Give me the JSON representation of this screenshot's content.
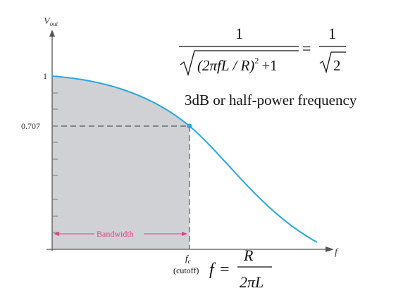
{
  "axes": {
    "y_label_main": "V",
    "y_label_sub": "out",
    "x_label": "f",
    "y_tick_1": "1",
    "y_tick_0707": "0.707"
  },
  "bandwidth_label": "Bandwidth",
  "cutoff": {
    "fc_main": "f",
    "fc_sub": "c",
    "cutoff_word": "(cutoff)"
  },
  "cutoff_formula": {
    "lhs": "f",
    "equals": "=",
    "numerator": "R",
    "denominator": "2πL"
  },
  "transfer_formula": {
    "lhs_numerator": "1",
    "lhs_denominator_expr": "(2πfL / R)",
    "exponent": "2",
    "plus_one": "+1",
    "equals": "=",
    "rhs_numerator": "1",
    "rhs_denominator_radicand": "2"
  },
  "caption": "3dB or half-power frequency",
  "colors": {
    "curve": "#2aa8df",
    "shaded": "#cfd1d4",
    "bandwidth": "#e0418a",
    "axis": "#555555"
  }
}
